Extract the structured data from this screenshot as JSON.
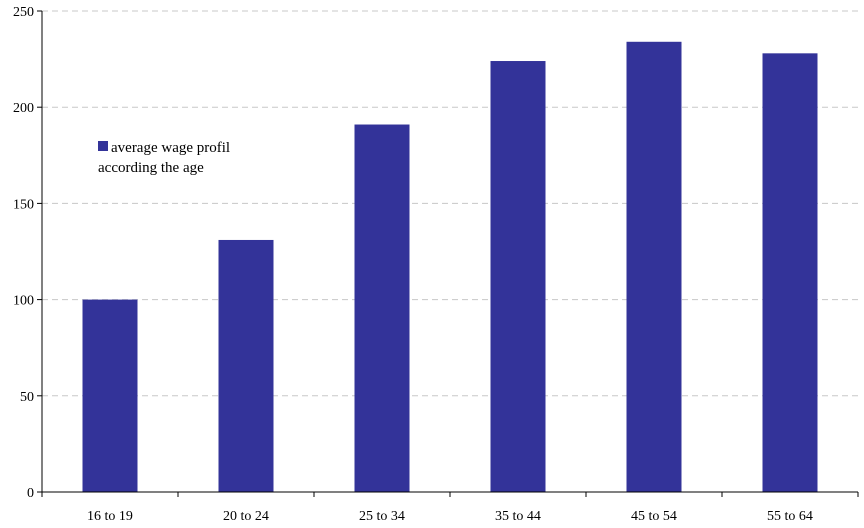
{
  "chart_data": {
    "type": "bar",
    "categories": [
      "16 to 19",
      "20 to 24",
      "25 to 34",
      "35 to 44",
      "45 to 54",
      "55 to 64"
    ],
    "series": [
      {
        "name": "average wage profil according the age",
        "legend_lines": [
          "average wage profil",
          "according the age"
        ],
        "values": [
          100,
          131,
          191,
          224,
          234,
          228
        ],
        "color": "#333399"
      }
    ],
    "title": "",
    "xlabel": "",
    "ylabel": "",
    "ylim": [
      0,
      250
    ],
    "yticks": [
      0,
      50,
      100,
      150,
      200,
      250
    ],
    "grid": "horizontal-dashed",
    "legend_position": "top-left-inside"
  }
}
